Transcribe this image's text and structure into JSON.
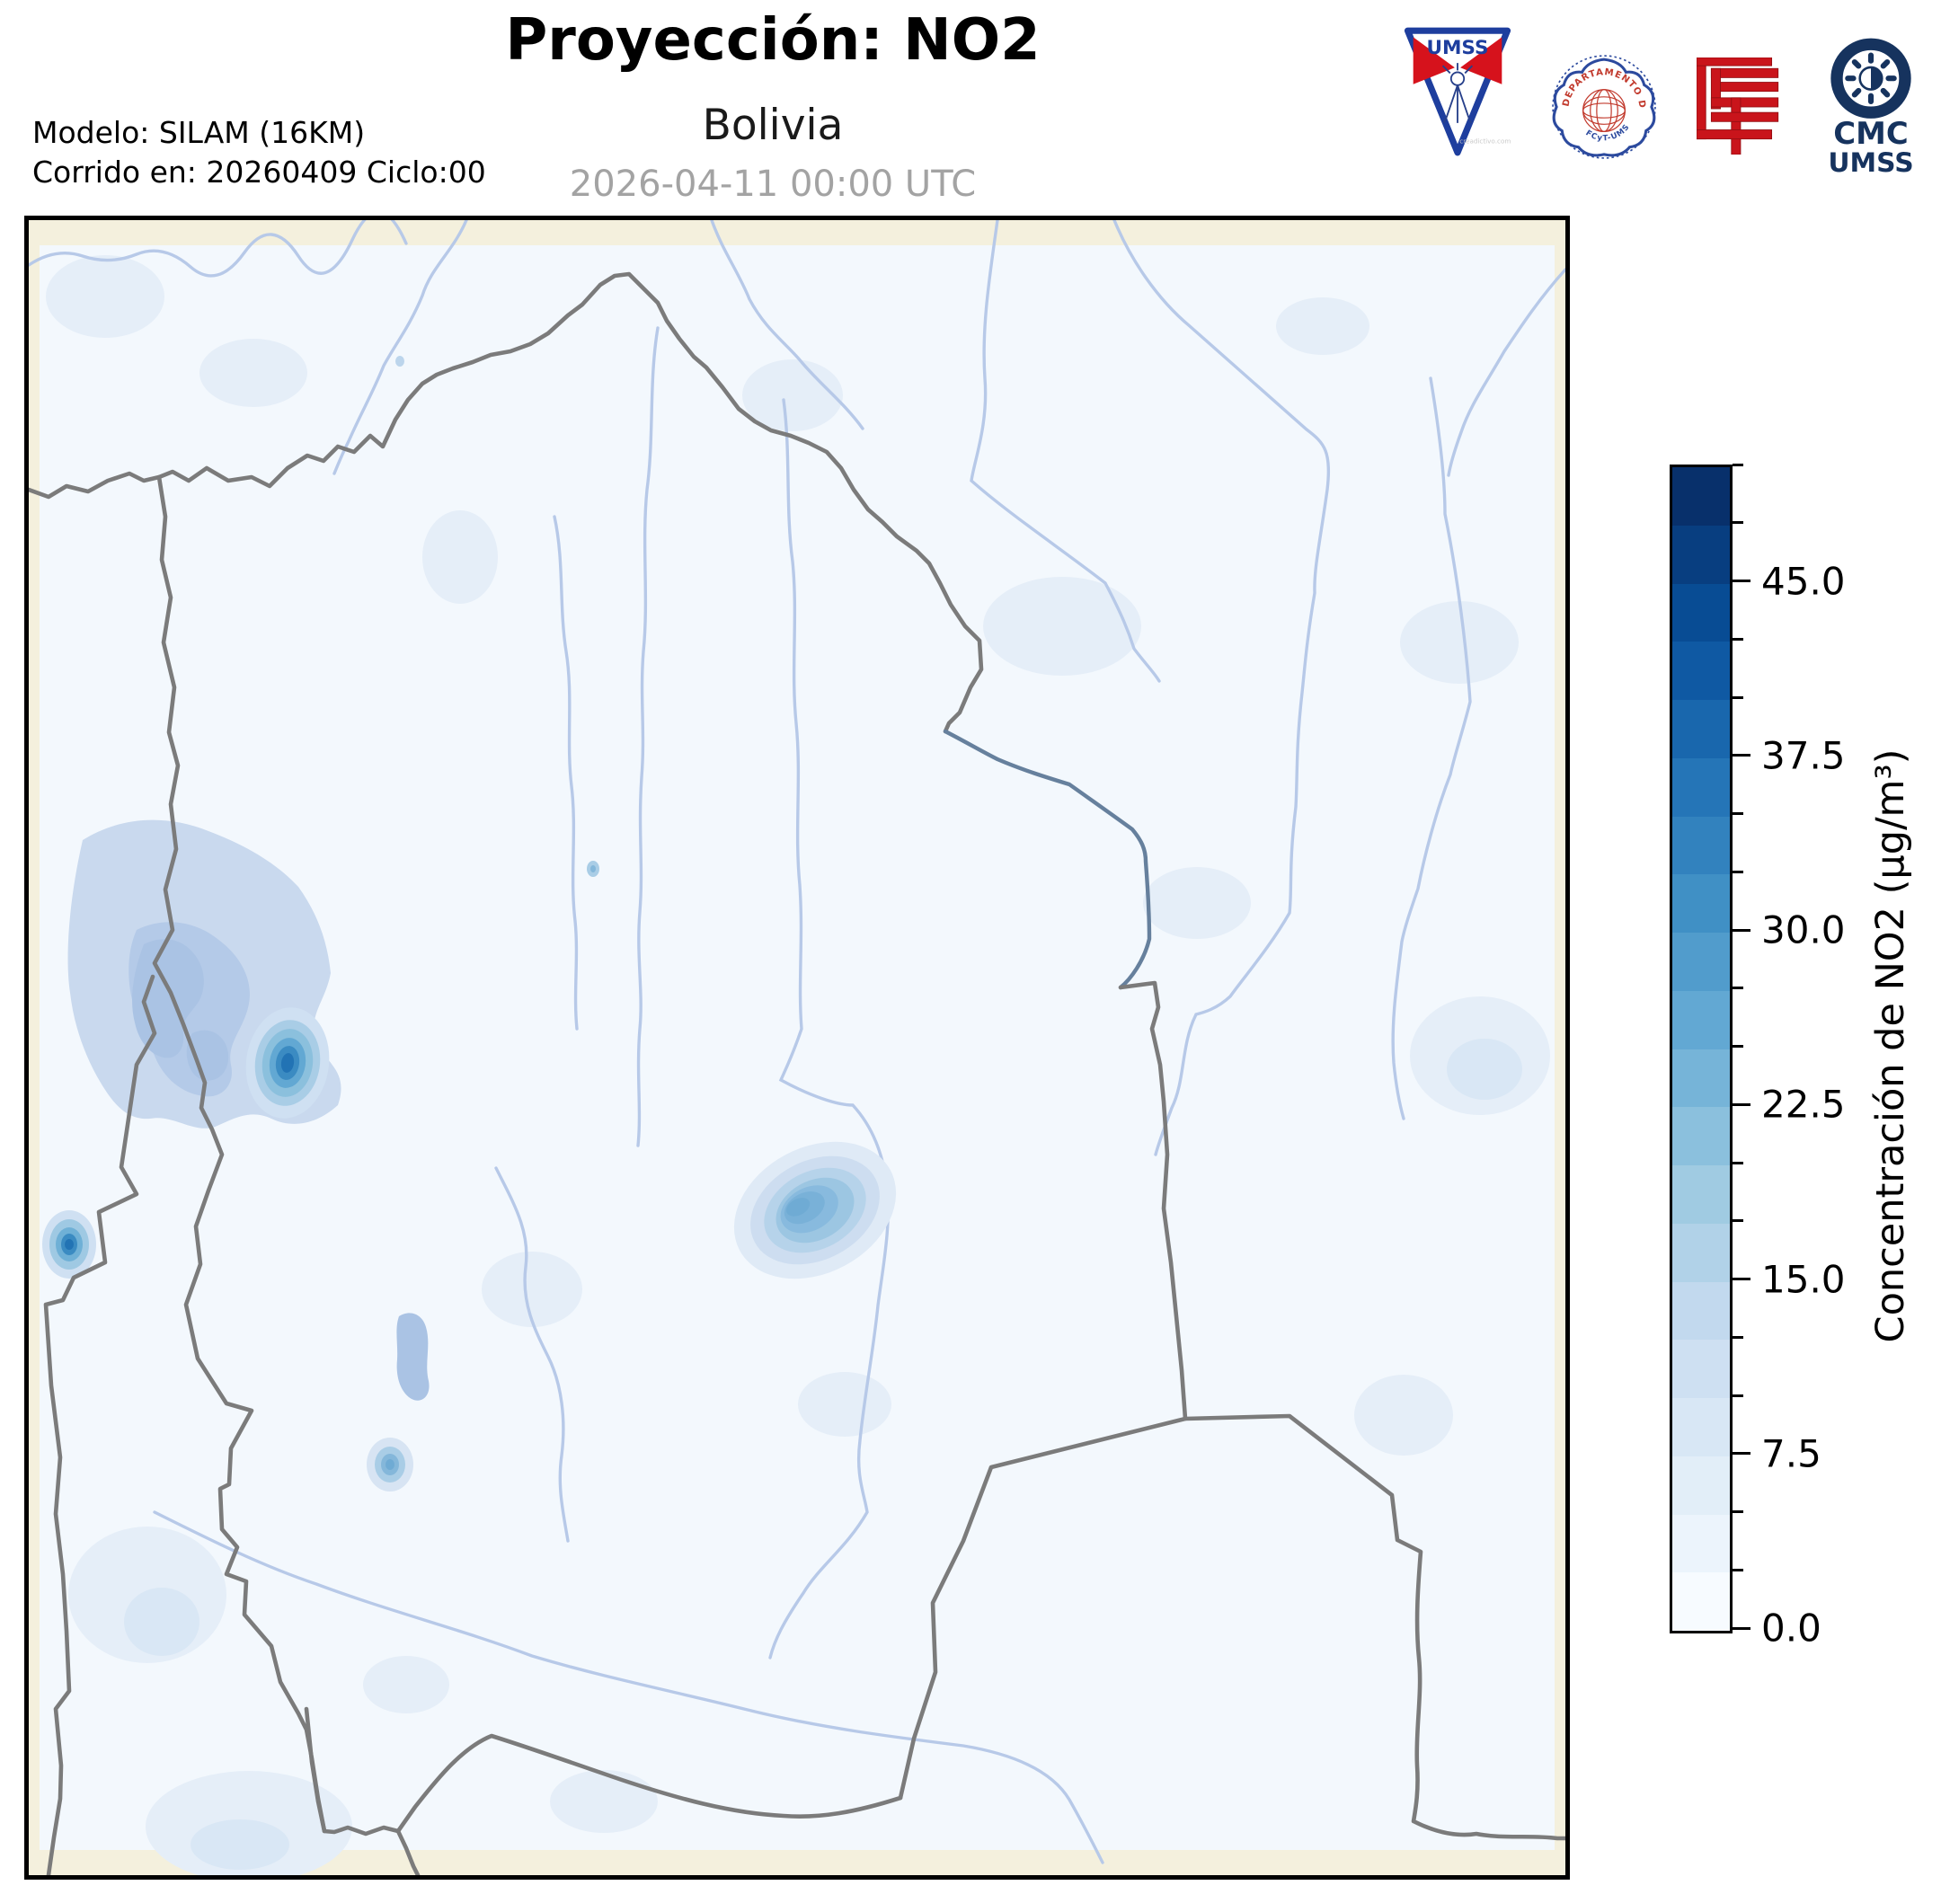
{
  "header": {
    "title": "Proyección: NO2",
    "subtitle": "Bolivia",
    "datetime": "2026-04-11 00:00 UTC",
    "model_line1": "Modelo: SILAM (16KM)",
    "model_line2": "Corrido en: 20260409 Ciclo:00"
  },
  "logos": {
    "umss_pennant": {
      "text": "UMSS",
      "watermark": "creadictivo.com"
    },
    "physics_seal": {
      "text_top": "DEPARTAMENTO DE FÍSICA",
      "text_bottom": "FCyT-UMSS"
    },
    "fcyt_mark": {
      "name": "fcyt-red-mark"
    },
    "cmc": {
      "line1": "CMC",
      "line2": "UMSS"
    }
  },
  "colorbar": {
    "label": "Concentración de NO2 (µg/m³)",
    "vmin": 0,
    "vmax": 50,
    "level_step": 2.5,
    "tick_values": [
      0,
      7.5,
      15,
      22.5,
      30,
      37.5,
      45
    ],
    "tick_labels": [
      "0.0",
      "7.5",
      "15.0",
      "22.5",
      "30.0",
      "37.5",
      "45.0"
    ],
    "segments_bottom_to_top": [
      "#f7fbff",
      "#ecf4fc",
      "#e2eef8",
      "#d8e7f5",
      "#cee0f2",
      "#c2d9ee",
      "#b1d2e8",
      "#a0cbe2",
      "#8bc0dd",
      "#76b4d8",
      "#62a8d3",
      "#519ccc",
      "#4090c5",
      "#3282be",
      "#2575b7",
      "#1967ad",
      "#0f59a3",
      "#084c94",
      "#083e80",
      "#08306b"
    ]
  },
  "palette": {
    "land_base": "#f4f0dd",
    "data_low": "#f3f8fd",
    "patch_faint": "#e5eef8",
    "patch_light": "#d9e7f5",
    "region_medium": "#c9d9ee",
    "region_deep": "#b4cae8",
    "lake": "#aac3e4",
    "river": "#b7c9e8",
    "river_border": "#66809d",
    "border": "#7b7b7b",
    "frame": "#000000",
    "logo_navy": "#16335e",
    "logo_blue": "#1e3e9e",
    "logo_red": "#c9141b",
    "seal_blue": "#2c4a9e",
    "seal_red": "#c23b2e"
  },
  "map": {
    "region": "Bolivia",
    "hotspots": [
      {
        "name": "hotspot-west-altiplano",
        "peak_color": "#2273b4"
      },
      {
        "name": "hotspot-far-west-border",
        "peak_color": "#2273b4"
      },
      {
        "name": "hotspot-central-lowlands",
        "peak_color": "#6fabd4"
      },
      {
        "name": "hotspot-south-central",
        "peak_color": "#6fabd4"
      }
    ]
  },
  "chart_data": {
    "type": "heatmap",
    "title": "Proyección: NO2",
    "subtitle": "Bolivia",
    "timestamp": "2026-04-11 00:00 UTC",
    "colorbar_label": "Concentración de NO2 (µg/m³)",
    "value_range": [
      0,
      50
    ],
    "contour_level_step": 2.5,
    "tick_labels": [
      "0.0",
      "7.5",
      "15.0",
      "22.5",
      "30.0",
      "37.5",
      "45.0"
    ],
    "legend_position": "right",
    "colormap": "Blues"
  }
}
